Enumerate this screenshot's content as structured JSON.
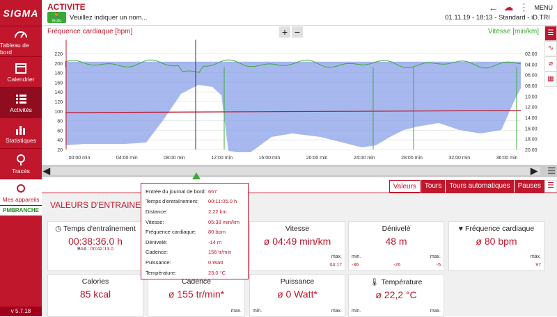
{
  "sidebar": {
    "logo": "SIGMA",
    "items": [
      {
        "label": "Tableau de bord",
        "icon": "dashboard-icon"
      },
      {
        "label": "Calendrier",
        "icon": "calendar-icon"
      },
      {
        "label": "Activités",
        "icon": "list-icon"
      },
      {
        "label": "Statistiques",
        "icon": "bar-chart-icon"
      },
      {
        "label": "Tracés",
        "icon": "map-pin-icon"
      },
      {
        "label": "Mes appareils",
        "icon": "watch-icon"
      }
    ],
    "branch": "PMBRANCHE",
    "version": "v 5.7.18"
  },
  "header": {
    "title": "ACTIVITE",
    "badge": "RUN",
    "name_placeholder": "Veuillez indiquer un nom...",
    "menu": "MENU",
    "info": "01.11.19 - 18:13 - Standard - iD.TRI"
  },
  "chart": {
    "left_title": "Fréquence cardiaque [bpm]",
    "right_title": "Vitesse [min/km]",
    "zoom_in": "+",
    "zoom_out": "−"
  },
  "chart_data": {
    "type": "line",
    "x_ticks": [
      "00:00 min",
      "04:00 min",
      "08:00 min",
      "12:00 min",
      "16:00 min",
      "20:00 min",
      "24:00 min",
      "28:00 min",
      "32:00 min",
      "36:00 min"
    ],
    "left_ticks": [
      "220",
      "200",
      "180",
      "160",
      "140",
      "120",
      "100",
      "80",
      "60",
      "40",
      "20"
    ],
    "right_ticks": [
      "02:00",
      "04:00",
      "06:00",
      "08:00",
      "10:00",
      "12:00",
      "14:00",
      "16:00",
      "18:00",
      "20:00"
    ],
    "colors": {
      "altitude": "#8aa0e8",
      "speed": "#3aaa35",
      "heart": "#c0172c"
    }
  },
  "tabs": [
    "Valeurs",
    "Tours",
    "Tours automatiques",
    "Pauses"
  ],
  "panel": {
    "title": "VALEURS D'ENTRAINEMENT",
    "cards": {
      "time": {
        "title": "Temps d'entraînement",
        "value": "00:38:36.0 h",
        "brut_label": "Brut :",
        "brut": "00:42:13.0"
      },
      "speed": {
        "title": "Vitesse",
        "value": "ø 04:49 min/km",
        "max_label": "max.",
        "max": "04:17"
      },
      "elev": {
        "title": "Dénivelé",
        "value": "48 m",
        "min_label": "min.",
        "min": "-36",
        "avg": "-26",
        "max_label": "max.",
        "max": "-5"
      },
      "hr": {
        "title": "Fréquence cardiaque",
        "value": "ø 80 bpm",
        "max_label": "max.",
        "max": "97"
      },
      "cal": {
        "title": "Calories",
        "value": "85 kcal"
      },
      "cad": {
        "title": "Cadence",
        "value": "ø 155 tr/min*",
        "max_label": "max."
      },
      "power": {
        "title": "Puissance",
        "value": "ø 0 Watt*",
        "min_label": "min.",
        "max_label": "max."
      },
      "temp": {
        "title": "Température",
        "value": "ø 22,2 °C",
        "min_label": "min.",
        "max_label": "max."
      }
    }
  },
  "tooltip": [
    {
      "k": "Entrée du journal de bord:",
      "v": "667"
    },
    {
      "k": "Temps d'entraînement:",
      "v": "00:11:05.0 h"
    },
    {
      "k": "Distance:",
      "v": "2,22 km"
    },
    {
      "k": "Vitesse:",
      "v": "05:38 min/km"
    },
    {
      "k": "Fréquence cardiaque:",
      "v": "80 bpm"
    },
    {
      "k": "Dénivelé:",
      "v": "-14 m"
    },
    {
      "k": "Cadence:",
      "v": "156 tr/min"
    },
    {
      "k": "Puissance:",
      "v": "0 Watt"
    },
    {
      "k": "Température:",
      "v": "23,0 °C"
    }
  ]
}
